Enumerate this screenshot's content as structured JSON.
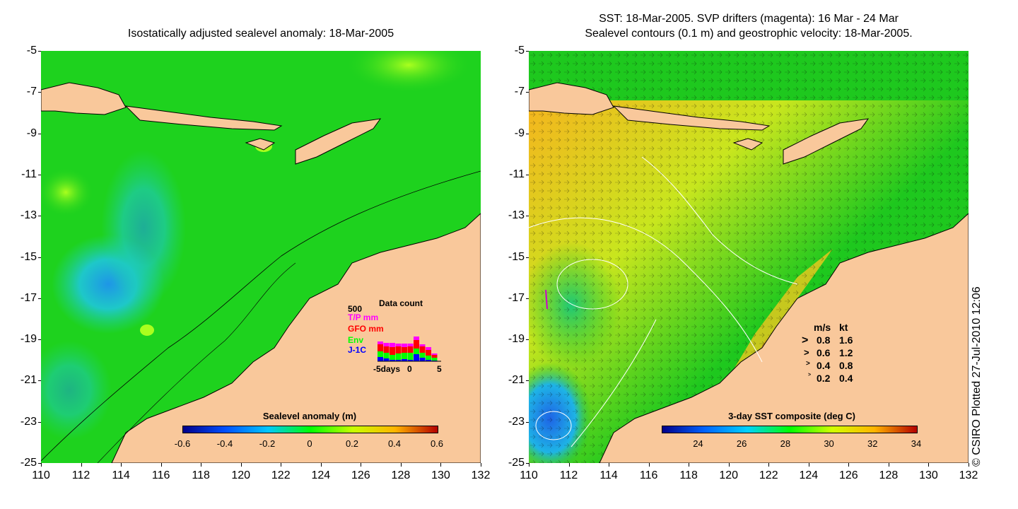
{
  "left": {
    "title": "Isostatically adjusted sealevel anomaly: 18-Mar-2005",
    "colorbar": {
      "title": "Sealevel anomaly (m)",
      "ticks": [
        "-0.6",
        "-0.4",
        "-0.2",
        "0",
        "0.2",
        "0.4",
        "0.6"
      ],
      "colors": [
        "#00008b",
        "#0050ff",
        "#00c8ff",
        "#00ff00",
        "#c8ff00",
        "#ffb400",
        "#b40000"
      ]
    },
    "data_count": {
      "title": "Data count",
      "max": "500",
      "series": [
        "T/P mm",
        "GFO mm",
        "Env",
        "J-1C"
      ],
      "series_colors": [
        "#ff00ff",
        "#ff0000",
        "#00ff00",
        "#0000ff"
      ],
      "xaxis": [
        "-5days",
        "0",
        "5"
      ]
    }
  },
  "right": {
    "title_line1": "SST: 18-Mar-2005. SVP drifters (magenta): 16 Mar - 24 Mar",
    "title_line2": "Sealevel contours (0.1 m) and geostrophic velocity: 18-Mar-2005.",
    "colorbar": {
      "title": "3-day SST composite (deg C)",
      "ticks": [
        "24",
        "26",
        "28",
        "30",
        "32",
        "34"
      ],
      "colors": [
        "#00008b",
        "#0064ff",
        "#00d2ff",
        "#00ff00",
        "#d2ff00",
        "#ffb400",
        "#b40000"
      ]
    },
    "velocity_legend": {
      "header_ms": "m/s",
      "header_kt": "kt",
      "rows": [
        {
          "ms": "0.8",
          "kt": "1.6"
        },
        {
          "ms": "0.6",
          "kt": "1.2"
        },
        {
          "ms": "0.4",
          "kt": "0.8"
        },
        {
          "ms": "0.2",
          "kt": "0.4"
        }
      ]
    }
  },
  "axes": {
    "y_ticks": [
      "-5",
      "-7",
      "-9",
      "-11",
      "-13",
      "-15",
      "-17",
      "-19",
      "-21",
      "-23",
      "-25"
    ],
    "x_ticks": [
      "110",
      "112",
      "114",
      "116",
      "118",
      "120",
      "122",
      "124",
      "126",
      "128",
      "130",
      "132"
    ]
  },
  "colors": {
    "land": "#f9c89b",
    "sea_green": "#1ed21e",
    "warm_sst": "#e68a1e"
  },
  "credit": "© CSIRO Plotted 27-Jul-2010 12:06"
}
